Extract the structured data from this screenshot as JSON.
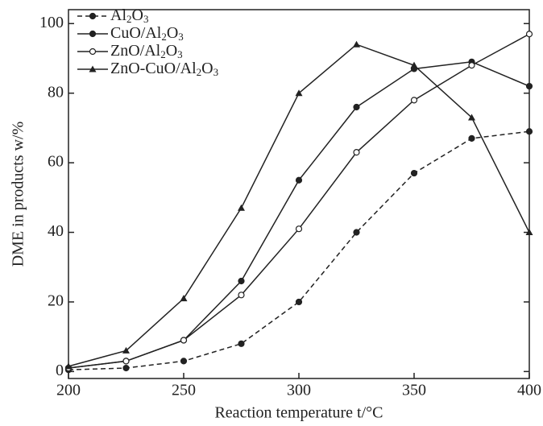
{
  "chart_data": {
    "type": "line",
    "x_label": "Reaction temperature t/°C",
    "y_label": "DME in products w/%",
    "x": [
      200,
      225,
      250,
      275,
      300,
      325,
      350,
      375,
      400
    ],
    "series": [
      {
        "name": "Al2O3",
        "color": "#222222",
        "dash": true,
        "marker": "circle-filled",
        "values": [
          0.5,
          1,
          3,
          8,
          20,
          40,
          57,
          67,
          69
        ]
      },
      {
        "name": "CuO/Al2O3",
        "color": "#222222",
        "dash": false,
        "marker": "circle-filled",
        "values": [
          1,
          3,
          9,
          26,
          55,
          76,
          87,
          89,
          82
        ]
      },
      {
        "name": "ZnO/Al2O3",
        "color": "#222222",
        "dash": false,
        "marker": "circle-open",
        "values": [
          1,
          3,
          9,
          22,
          41,
          63,
          78,
          88,
          97
        ]
      },
      {
        "name": "ZnO-CuO/Al2O3",
        "color": "#222222",
        "dash": false,
        "marker": "triangle",
        "values": [
          1.5,
          6,
          21,
          47,
          80,
          94,
          88,
          73,
          40
        ]
      }
    ],
    "xlim": [
      200,
      400
    ],
    "xticks": [
      200,
      250,
      300,
      350,
      400
    ],
    "ylim": [
      -2,
      104
    ],
    "yticks": [
      0,
      20,
      40,
      60,
      80,
      100
    ],
    "legend": "upper-left"
  }
}
